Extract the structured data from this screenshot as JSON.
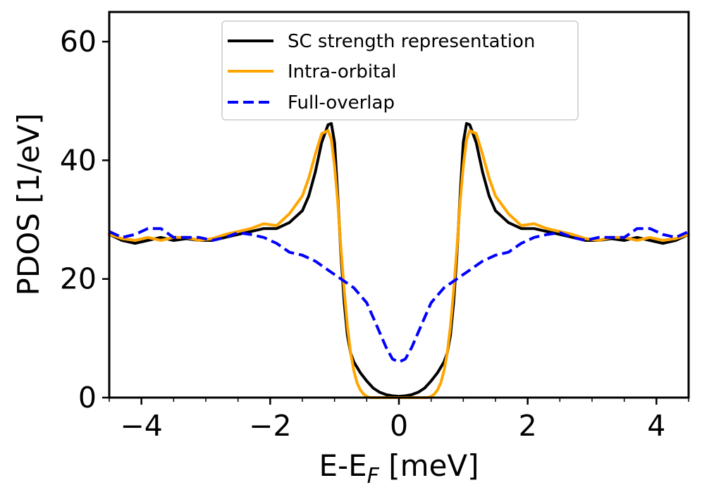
{
  "chart_data": {
    "type": "line",
    "title": "",
    "xlabel": "E-E",
    "xlabel_sub": "F",
    "xlabel_unit": " [meV]",
    "ylabel": "PDOS [1/eV]",
    "xlim": [
      -4.5,
      4.5
    ],
    "ylim": [
      0,
      65
    ],
    "x_ticks": [
      -4,
      -2,
      0,
      2,
      4
    ],
    "x_tick_labels": [
      "−4",
      "−2",
      "0",
      "2",
      "4"
    ],
    "y_ticks": [
      0,
      20,
      40,
      60
    ],
    "y_tick_labels": [
      "0",
      "20",
      "40",
      "60"
    ],
    "legend_position": "top-center",
    "series": [
      {
        "name": "SC strength representation",
        "color": "#000000",
        "style": "solid",
        "x": [
          -4.5,
          -4.3,
          -4.1,
          -3.9,
          -3.7,
          -3.5,
          -3.3,
          -3.1,
          -2.9,
          -2.7,
          -2.5,
          -2.3,
          -2.1,
          -1.9,
          -1.7,
          -1.5,
          -1.4,
          -1.3,
          -1.2,
          -1.1,
          -1.05,
          -1.0,
          -0.95,
          -0.9,
          -0.85,
          -0.8,
          -0.75,
          -0.7,
          -0.6,
          -0.5,
          -0.4,
          -0.3,
          -0.2,
          -0.1,
          0.0,
          0.1,
          0.2,
          0.3,
          0.4,
          0.5,
          0.6,
          0.7,
          0.75,
          0.8,
          0.85,
          0.9,
          0.95,
          1.0,
          1.05,
          1.1,
          1.2,
          1.3,
          1.4,
          1.5,
          1.7,
          1.9,
          2.1,
          2.3,
          2.5,
          2.7,
          2.9,
          3.1,
          3.3,
          3.5,
          3.7,
          3.9,
          4.1,
          4.3,
          4.5
        ],
        "y": [
          27.5,
          26.5,
          26.0,
          26.5,
          27.0,
          26.5,
          26.8,
          26.5,
          26.5,
          27.0,
          27.5,
          28.0,
          28.5,
          28.5,
          29.5,
          31.5,
          34.0,
          38.0,
          43.0,
          46.0,
          46.2,
          43.0,
          34.0,
          24.0,
          16.0,
          10.5,
          7.5,
          6.0,
          4.2,
          2.8,
          1.6,
          0.9,
          0.5,
          0.3,
          0.2,
          0.3,
          0.5,
          0.9,
          1.6,
          2.8,
          4.2,
          6.0,
          7.5,
          10.5,
          16.0,
          24.0,
          34.0,
          43.0,
          46.2,
          46.0,
          43.0,
          38.0,
          34.0,
          31.5,
          29.5,
          28.5,
          28.5,
          28.0,
          27.5,
          27.0,
          26.5,
          26.5,
          26.8,
          26.5,
          27.0,
          26.5,
          26.0,
          26.5,
          27.5
        ]
      },
      {
        "name": "Intra-orbital",
        "color": "#FFA500",
        "style": "solid",
        "x": [
          -4.5,
          -4.3,
          -4.1,
          -3.9,
          -3.7,
          -3.5,
          -3.3,
          -3.1,
          -2.9,
          -2.7,
          -2.5,
          -2.3,
          -2.1,
          -1.9,
          -1.7,
          -1.5,
          -1.4,
          -1.3,
          -1.2,
          -1.1,
          -1.05,
          -1.0,
          -0.95,
          -0.9,
          -0.85,
          -0.8,
          -0.75,
          -0.7,
          -0.65,
          -0.6,
          -0.55,
          -0.5,
          -0.45,
          -0.4,
          0.4,
          0.45,
          0.5,
          0.55,
          0.6,
          0.65,
          0.7,
          0.75,
          0.8,
          0.85,
          0.9,
          0.95,
          1.0,
          1.05,
          1.1,
          1.2,
          1.3,
          1.4,
          1.5,
          1.7,
          1.9,
          2.1,
          2.3,
          2.5,
          2.7,
          2.9,
          3.1,
          3.3,
          3.5,
          3.7,
          3.9,
          4.1,
          4.3,
          4.5
        ],
        "y": [
          27.5,
          26.8,
          26.5,
          27.0,
          26.5,
          27.0,
          27.0,
          26.5,
          26.8,
          27.5,
          28.0,
          28.5,
          29.3,
          29.0,
          31.0,
          34.0,
          37.0,
          41.0,
          44.5,
          45.0,
          43.5,
          39.0,
          33.0,
          25.0,
          18.0,
          12.0,
          7.5,
          4.5,
          2.5,
          1.3,
          0.6,
          0.2,
          0.0,
          0.0,
          0.0,
          0.0,
          0.2,
          0.6,
          1.3,
          2.5,
          4.5,
          7.5,
          12.0,
          18.0,
          25.0,
          33.0,
          39.0,
          43.5,
          45.0,
          44.5,
          41.0,
          37.0,
          34.0,
          31.0,
          29.0,
          29.3,
          28.5,
          28.0,
          27.5,
          26.8,
          26.5,
          27.0,
          27.0,
          26.5,
          27.0,
          26.5,
          26.8,
          27.5
        ]
      },
      {
        "name": "Full-overlap",
        "color": "#0000FF",
        "style": "dashed",
        "x": [
          -4.5,
          -4.3,
          -4.1,
          -3.9,
          -3.7,
          -3.5,
          -3.3,
          -3.1,
          -2.9,
          -2.7,
          -2.5,
          -2.3,
          -2.1,
          -1.9,
          -1.7,
          -1.5,
          -1.3,
          -1.1,
          -0.9,
          -0.7,
          -0.5,
          -0.4,
          -0.3,
          -0.2,
          -0.1,
          0.0,
          0.1,
          0.2,
          0.3,
          0.4,
          0.5,
          0.7,
          0.9,
          1.1,
          1.3,
          1.5,
          1.7,
          1.9,
          2.1,
          2.3,
          2.5,
          2.7,
          2.9,
          3.1,
          3.3,
          3.5,
          3.7,
          3.9,
          4.1,
          4.3,
          4.5
        ],
        "y": [
          28.0,
          27.0,
          27.5,
          28.5,
          28.5,
          27.0,
          27.0,
          27.0,
          26.5,
          27.0,
          27.8,
          27.5,
          27.0,
          26.0,
          24.5,
          24.0,
          23.0,
          21.5,
          20.0,
          18.5,
          16.0,
          13.5,
          11.0,
          8.5,
          6.5,
          6.0,
          6.5,
          8.5,
          11.0,
          13.5,
          16.0,
          18.5,
          20.0,
          21.5,
          23.0,
          24.0,
          24.5,
          26.0,
          27.0,
          27.5,
          27.8,
          27.0,
          26.5,
          27.0,
          27.0,
          27.0,
          28.5,
          28.5,
          27.5,
          27.0,
          28.0
        ]
      }
    ]
  }
}
